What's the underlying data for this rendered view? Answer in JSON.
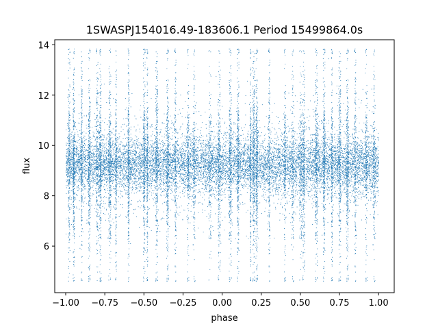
{
  "chart_data": {
    "type": "scatter",
    "title": "1SWASPJ154016.49-183606.1 Period 15499864.0s",
    "xlabel": "phase",
    "ylabel": "flux",
    "xlim": [
      -1.07,
      1.1
    ],
    "ylim": [
      4.15,
      14.2
    ],
    "xticks": [
      -1.0,
      -0.75,
      -0.5,
      -0.25,
      0.0,
      0.25,
      0.5,
      0.75,
      1.0
    ],
    "xtick_labels": [
      "−1.00",
      "−0.75",
      "−0.50",
      "−0.25",
      "0.00",
      "0.25",
      "0.50",
      "0.75",
      "1.00"
    ],
    "yticks": [
      6,
      8,
      10,
      12,
      14
    ],
    "ytick_labels": [
      "6",
      "8",
      "10",
      "12",
      "14"
    ],
    "grid": false,
    "legend": "none",
    "marker_color": "#1f77b4",
    "series": [
      {
        "baseline_flux": 9.25,
        "core_band": [
          8.5,
          10.0
        ],
        "full_range": [
          4.6,
          13.85
        ],
        "phase_range": [
          -1.0,
          1.0
        ],
        "high_scatter_phases": [
          -0.98,
          -0.95,
          -0.9,
          -0.85,
          -0.8,
          -0.78,
          -0.72,
          -0.68,
          -0.6,
          -0.5,
          -0.48,
          -0.42,
          -0.35,
          -0.3,
          -0.22,
          -0.18,
          -0.08,
          -0.02,
          0.05,
          0.1,
          0.18,
          0.2,
          0.22,
          0.3,
          0.4,
          0.45,
          0.5,
          0.52,
          0.6,
          0.65,
          0.7,
          0.75,
          0.8,
          0.85,
          0.92,
          0.97
        ]
      }
    ]
  }
}
